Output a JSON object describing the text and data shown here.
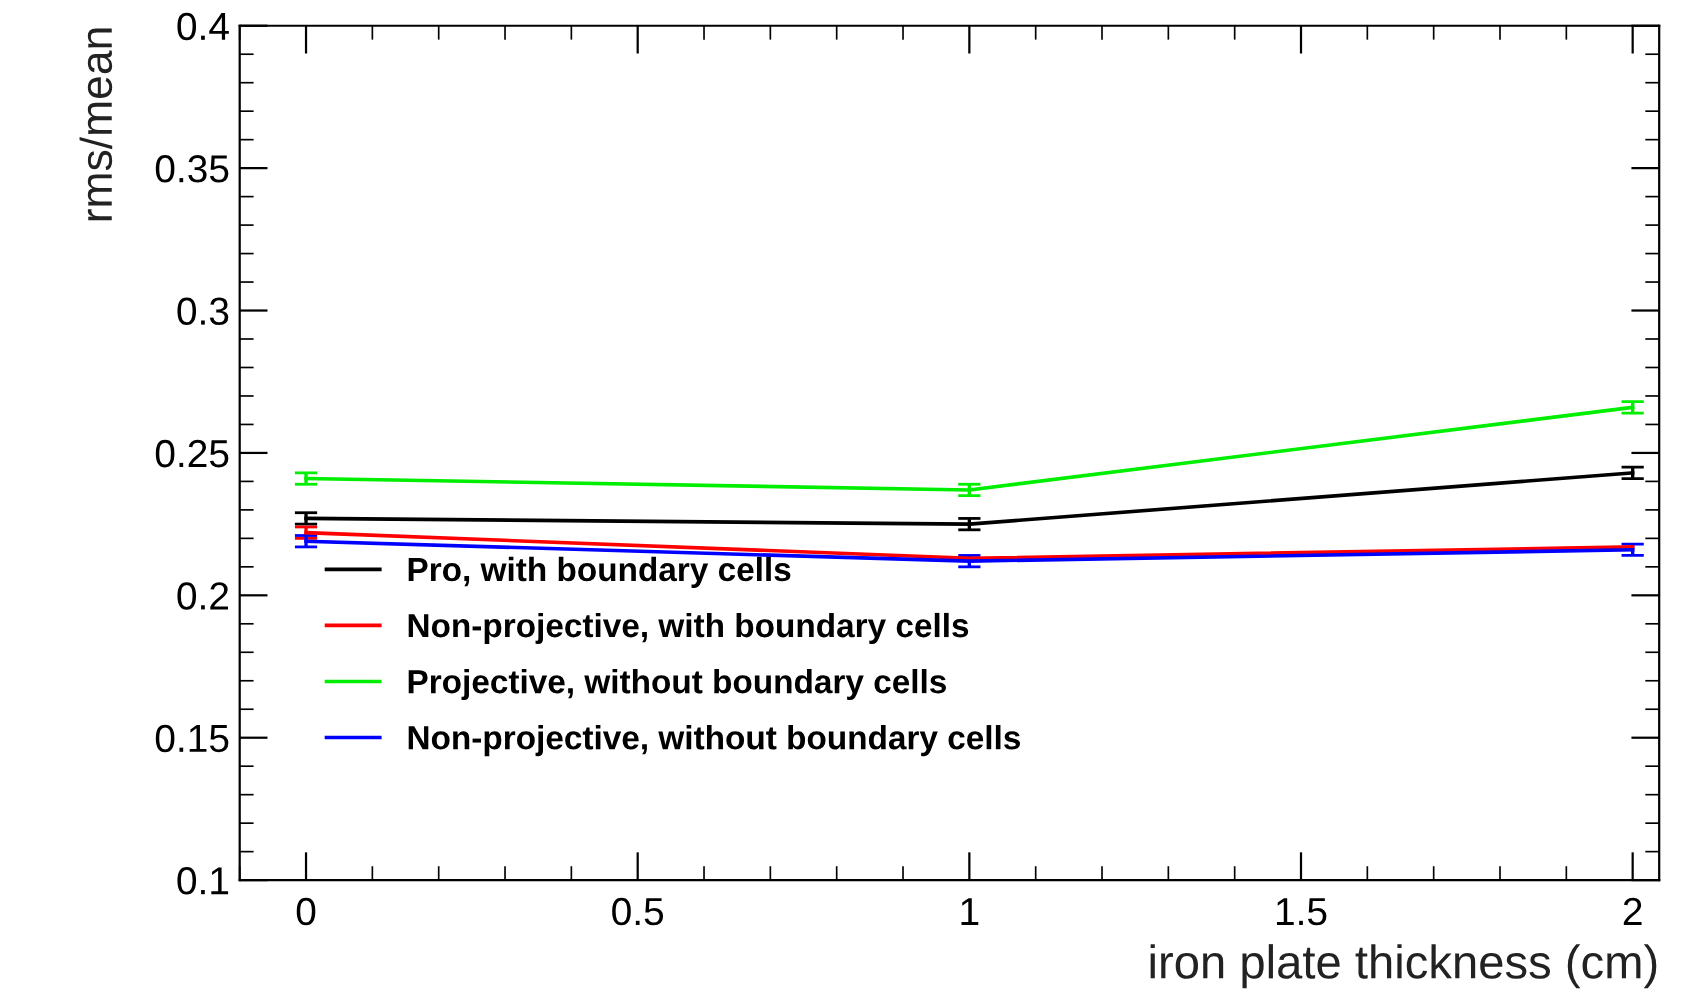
{
  "chart_data": {
    "type": "line",
    "xlabel": "iron plate thickness (cm)",
    "ylabel": "rms/mean",
    "x": [
      0,
      1,
      2
    ],
    "xlim": [
      -0.1,
      2.04
    ],
    "xticks": [
      0,
      {
        "value": 0.5,
        "label": "0.5"
      },
      1,
      {
        "value": 1.5,
        "label": "1.5"
      },
      2
    ],
    "ylim": [
      0.1,
      0.4
    ],
    "yticks": [
      {
        "value": 0.1,
        "label": "0.1"
      },
      {
        "value": 0.15,
        "label": "0.15"
      },
      {
        "value": 0.2,
        "label": "0.2"
      },
      {
        "value": 0.25,
        "label": "0.25"
      },
      {
        "value": 0.3,
        "label": "0.3"
      },
      {
        "value": 0.35,
        "label": "0.35"
      },
      {
        "value": 0.4,
        "label": "0.4"
      }
    ],
    "grid": false,
    "legend": "bottom left",
    "marker": "none",
    "line_style": "solid",
    "series": [
      {
        "name": "Pro, with boundary cells",
        "color": "#000000",
        "values": [
          0.227,
          0.225,
          0.243
        ],
        "errors": [
          0.002,
          0.002,
          0.002
        ]
      },
      {
        "name": "Non-projective, with boundary cells",
        "color": "#ff0000",
        "values": [
          0.222,
          0.213,
          0.217
        ],
        "errors": [
          0.002,
          null,
          null
        ]
      },
      {
        "name": "Projective, without boundary cells",
        "color": "#00ee00",
        "values": [
          0.241,
          0.237,
          0.266
        ],
        "errors": [
          0.002,
          0.002,
          0.002
        ]
      },
      {
        "name": "Non-projective, without boundary cells",
        "color": "#0000ff",
        "values": [
          0.219,
          0.212,
          0.216
        ],
        "errors": [
          0.002,
          0.002,
          0.002
        ]
      }
    ]
  }
}
